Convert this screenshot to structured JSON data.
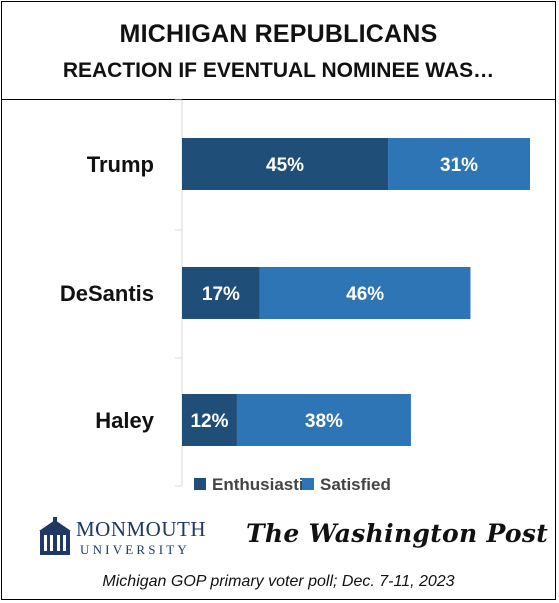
{
  "header": {
    "title_line1": "MICHIGAN REPUBLICANS",
    "title_line2": "REACTION IF EVENTUAL NOMINEE WAS…"
  },
  "colors": {
    "enthusiastic": "#1f4e79",
    "satisfied": "#2e75b6",
    "axis": "#d9d9d9"
  },
  "chart_data": {
    "type": "bar",
    "orientation": "horizontal",
    "stacked": true,
    "categories": [
      "Trump",
      "DeSantis",
      "Haley"
    ],
    "series": [
      {
        "name": "Enthusiastic",
        "values": [
          45,
          17,
          12
        ],
        "labels": [
          "45%",
          "17%",
          "12%"
        ]
      },
      {
        "name": "Satisfied",
        "values": [
          31,
          46,
          38
        ],
        "labels": [
          "31%",
          "46%",
          "38%"
        ]
      }
    ],
    "xlim": [
      0,
      80
    ],
    "legend": "bottom",
    "grid": false
  },
  "logos": {
    "monmouth_name": "MONMOUTH",
    "monmouth_sub": "UNIVERSITY",
    "washington_post": "The Washington Post"
  },
  "footer": "Michigan GOP primary voter poll;  Dec. 7-11, 2023"
}
